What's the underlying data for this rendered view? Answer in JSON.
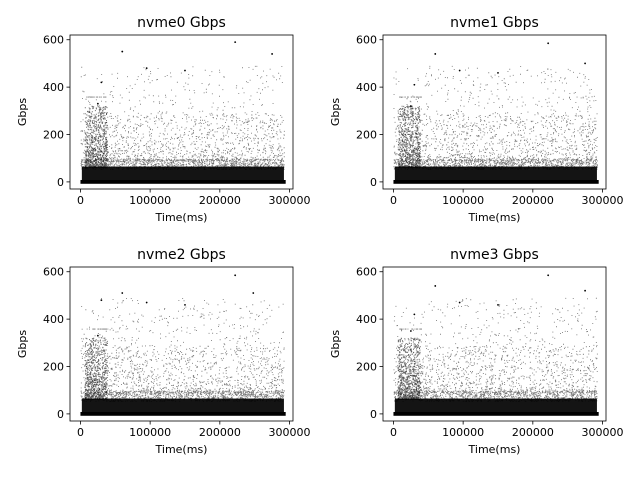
{
  "chart_data": [
    {
      "type": "scatter",
      "title": "nvme0 Gbps",
      "xlabel": "Time(ms)",
      "ylabel": "Gbps",
      "xlim": [
        -15000,
        305000
      ],
      "ylim": [
        -30,
        620
      ],
      "xticks": [
        0,
        100000,
        200000,
        300000
      ],
      "xtick_labels": [
        "0",
        "100000",
        "200000",
        "300000"
      ],
      "yticks": [
        0,
        200,
        400,
        600
      ],
      "ytick_labels": [
        "0",
        "200",
        "400",
        "600"
      ],
      "x_range": [
        0,
        292000
      ],
      "dense_band_max": 90,
      "points": [
        [
          60000,
          550
        ],
        [
          222000,
          590
        ],
        [
          25000,
          330
        ],
        [
          30000,
          420
        ],
        [
          275000,
          540
        ],
        [
          150000,
          470
        ],
        [
          95000,
          480
        ]
      ],
      "grid": false,
      "color": "#000000"
    },
    {
      "type": "scatter",
      "title": "nvme1 Gbps",
      "xlabel": "Time(ms)",
      "ylabel": "Gbps",
      "xlim": [
        -15000,
        305000
      ],
      "ylim": [
        -30,
        620
      ],
      "xticks": [
        0,
        100000,
        200000,
        300000
      ],
      "xtick_labels": [
        "0",
        "100000",
        "200000",
        "300000"
      ],
      "yticks": [
        0,
        200,
        400,
        600
      ],
      "ytick_labels": [
        "0",
        "200",
        "400",
        "600"
      ],
      "x_range": [
        0,
        292000
      ],
      "dense_band_max": 90,
      "points": [
        [
          60000,
          540
        ],
        [
          222000,
          585
        ],
        [
          25000,
          320
        ],
        [
          30000,
          410
        ],
        [
          275000,
          500
        ],
        [
          150000,
          460
        ],
        [
          95000,
          470
        ]
      ],
      "grid": false,
      "color": "#000000"
    },
    {
      "type": "scatter",
      "title": "nvme2 Gbps",
      "xlabel": "Time(ms)",
      "ylabel": "Gbps",
      "xlim": [
        -15000,
        305000
      ],
      "ylim": [
        -30,
        620
      ],
      "xticks": [
        0,
        100000,
        200000,
        300000
      ],
      "xtick_labels": [
        "0",
        "100000",
        "200000",
        "300000"
      ],
      "yticks": [
        0,
        200,
        400,
        600
      ],
      "ytick_labels": [
        "0",
        "200",
        "400",
        "600"
      ],
      "x_range": [
        0,
        292000
      ],
      "dense_band_max": 90,
      "points": [
        [
          60000,
          510
        ],
        [
          222000,
          585
        ],
        [
          248000,
          510
        ],
        [
          25000,
          330
        ],
        [
          30000,
          480
        ],
        [
          150000,
          460
        ],
        [
          95000,
          470
        ]
      ],
      "grid": false,
      "color": "#000000"
    },
    {
      "type": "scatter",
      "title": "nvme3 Gbps",
      "xlabel": "Time(ms)",
      "ylabel": "Gbps",
      "xlim": [
        -15000,
        305000
      ],
      "ylim": [
        -30,
        620
      ],
      "xticks": [
        0,
        100000,
        200000,
        300000
      ],
      "xtick_labels": [
        "0",
        "100000",
        "200000",
        "300000"
      ],
      "yticks": [
        0,
        200,
        400,
        600
      ],
      "ytick_labels": [
        "0",
        "200",
        "400",
        "600"
      ],
      "x_range": [
        0,
        292000
      ],
      "dense_band_max": 90,
      "points": [
        [
          60000,
          540
        ],
        [
          222000,
          585
        ],
        [
          25000,
          350
        ],
        [
          30000,
          420
        ],
        [
          275000,
          520
        ],
        [
          150000,
          460
        ],
        [
          95000,
          470
        ]
      ],
      "grid": false,
      "color": "#000000"
    }
  ]
}
